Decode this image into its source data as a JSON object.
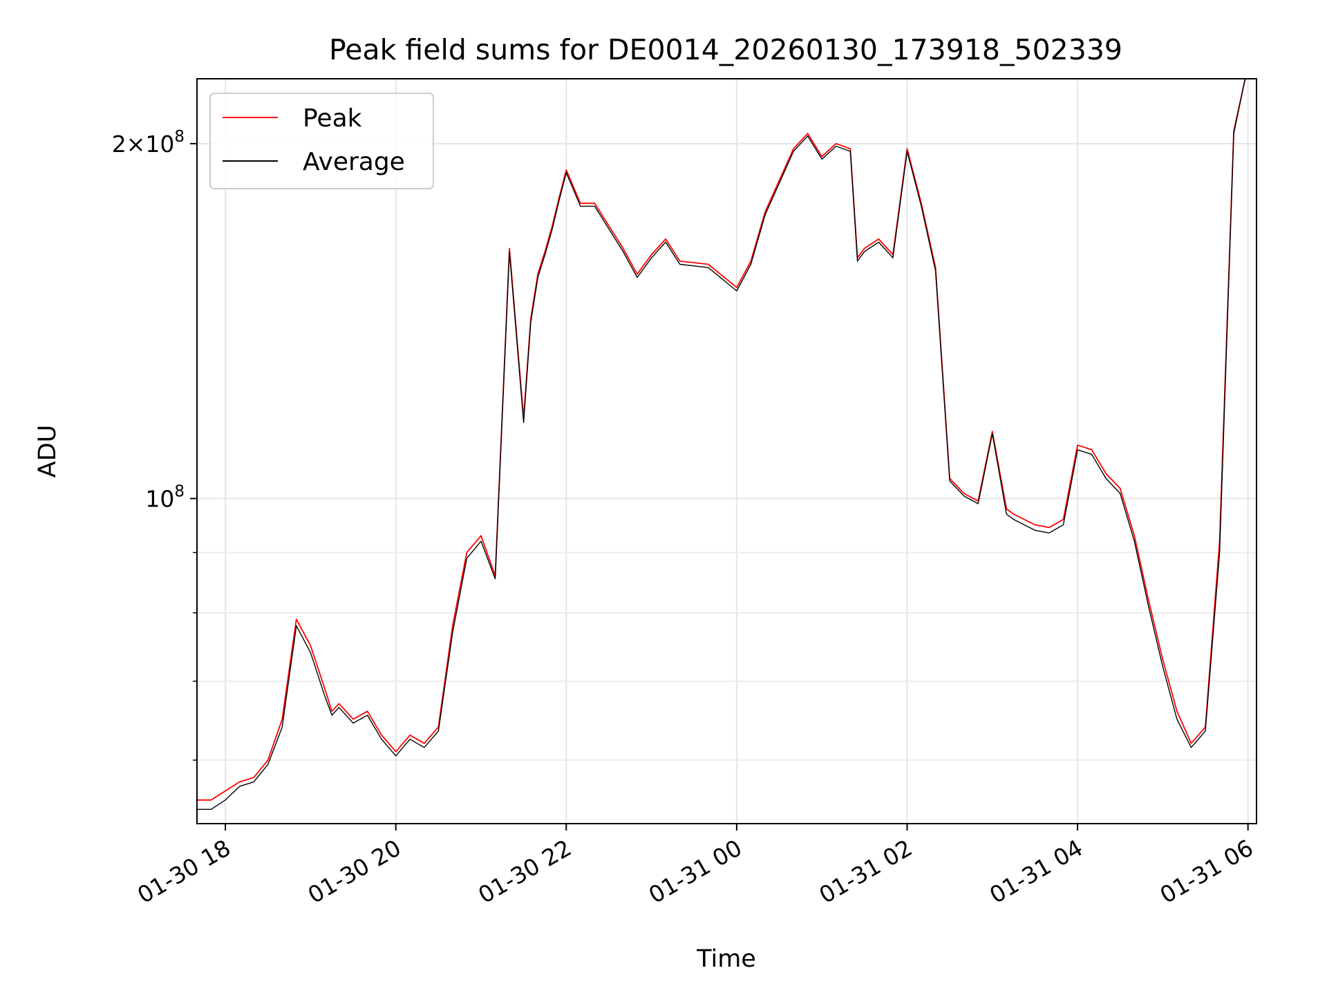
{
  "chart_data": {
    "type": "line",
    "title": "Peak field sums for DE0014_20260130_173918_502339",
    "xlabel": "Time",
    "ylabel": "ADU",
    "y_scale": "log",
    "ylim": [
      53000000,
      227000000
    ],
    "xlim": [
      "01-30 17:40",
      "01-31 06:06"
    ],
    "grid": true,
    "legend_position": "upper-left",
    "x_ticks": [
      "01-30 18",
      "01-30 20",
      "01-30 22",
      "01-31 00",
      "01-31 02",
      "01-31 04",
      "01-31 06"
    ],
    "y_ticks": [
      {
        "value": 100000000,
        "mantissa": "",
        "base": "10",
        "exponent": "8"
      },
      {
        "value": 200000000,
        "mantissa": "2×",
        "base": "10",
        "exponent": "8"
      }
    ],
    "y_minor_ticks": [
      60000000,
      70000000,
      80000000,
      90000000
    ],
    "series": [
      {
        "name": "Peak",
        "color": "#ff0000"
      },
      {
        "name": "Average",
        "color": "#000000"
      }
    ],
    "x": [
      "01-30 17:40",
      "01-30 17:50",
      "01-30 18:00",
      "01-30 18:10",
      "01-30 18:20",
      "01-30 18:30",
      "01-30 18:40",
      "01-30 18:50",
      "01-30 19:00",
      "01-30 19:10",
      "01-30 19:15",
      "01-30 19:20",
      "01-30 19:30",
      "01-30 19:40",
      "01-30 19:50",
      "01-30 20:00",
      "01-30 20:10",
      "01-30 20:20",
      "01-30 20:30",
      "01-30 20:40",
      "01-30 20:50",
      "01-30 21:00",
      "01-30 21:10",
      "01-30 21:20",
      "01-30 21:30",
      "01-30 21:35",
      "01-30 21:40",
      "01-30 21:45",
      "01-30 21:50",
      "01-30 21:55",
      "01-30 22:00",
      "01-30 22:10",
      "01-30 22:20",
      "01-30 22:40",
      "01-30 22:50",
      "01-30 23:00",
      "01-30 23:10",
      "01-30 23:20",
      "01-30 23:40",
      "01-31 00:00",
      "01-31 00:10",
      "01-31 00:20",
      "01-31 00:40",
      "01-31 00:50",
      "01-31 01:00",
      "01-31 01:10",
      "01-31 01:20",
      "01-31 01:25",
      "01-31 01:30",
      "01-31 01:40",
      "01-31 01:50",
      "01-31 02:00",
      "01-31 02:10",
      "01-31 02:20",
      "01-31 02:30",
      "01-31 02:40",
      "01-31 02:50",
      "01-31 03:00",
      "01-31 03:10",
      "01-31 03:15",
      "01-31 03:30",
      "01-31 03:40",
      "01-31 03:50",
      "01-31 04:00",
      "01-31 04:10",
      "01-31 04:20",
      "01-31 04:30",
      "01-31 04:40",
      "01-31 04:50",
      "01-31 05:00",
      "01-31 05:10",
      "01-31 05:20",
      "01-31 05:30",
      "01-31 05:40",
      "01-31 05:50",
      "01-31 05:58"
    ],
    "peak_values": [
      55500000,
      55500000,
      56500000,
      57500000,
      58000000,
      60000000,
      65000000,
      79000000,
      75000000,
      69000000,
      66000000,
      67000000,
      65000000,
      66000000,
      63000000,
      61000000,
      63000000,
      62000000,
      64000000,
      78000000,
      90000000,
      93000000,
      86000000,
      163000000,
      117000000,
      142000000,
      155000000,
      162000000,
      170000000,
      180000000,
      190000000,
      178000000,
      178000000,
      163000000,
      155000000,
      161000000,
      166000000,
      159000000,
      158000000,
      151000000,
      159000000,
      175000000,
      198000000,
      204000000,
      195000000,
      200000000,
      198000000,
      160000000,
      163000000,
      166000000,
      161000000,
      198000000,
      178000000,
      157000000,
      104000000,
      101000000,
      99500000,
      114000000,
      98000000,
      97000000,
      95000000,
      94500000,
      96000000,
      111000000,
      110000000,
      105000000,
      102000000,
      93000000,
      82000000,
      73000000,
      66000000,
      62000000,
      64000000,
      92000000,
      205000000,
      227000000
    ],
    "average_values": [
      54500000,
      54500000,
      55500000,
      57000000,
      57500000,
      59500000,
      64000000,
      78000000,
      74000000,
      68000000,
      65500000,
      66500000,
      64500000,
      65500000,
      62500000,
      60500000,
      62500000,
      61500000,
      63500000,
      77000000,
      89000000,
      92000000,
      85500000,
      162000000,
      116000000,
      141000000,
      154000000,
      161000000,
      169000000,
      179000000,
      189000000,
      177000000,
      177000000,
      162000000,
      154000000,
      160000000,
      165000000,
      158000000,
      157000000,
      150000000,
      158000000,
      174000000,
      197000000,
      203000000,
      194000000,
      199000000,
      197000000,
      159000000,
      162000000,
      165000000,
      160000000,
      197000000,
      177000000,
      156000000,
      103500000,
      100500000,
      99000000,
      113500000,
      97000000,
      96000000,
      94000000,
      93500000,
      95000000,
      110000000,
      109000000,
      104000000,
      101000000,
      92000000,
      81000000,
      72000000,
      65000000,
      61500000,
      63500000,
      90000000,
      204000000,
      227000000
    ]
  }
}
